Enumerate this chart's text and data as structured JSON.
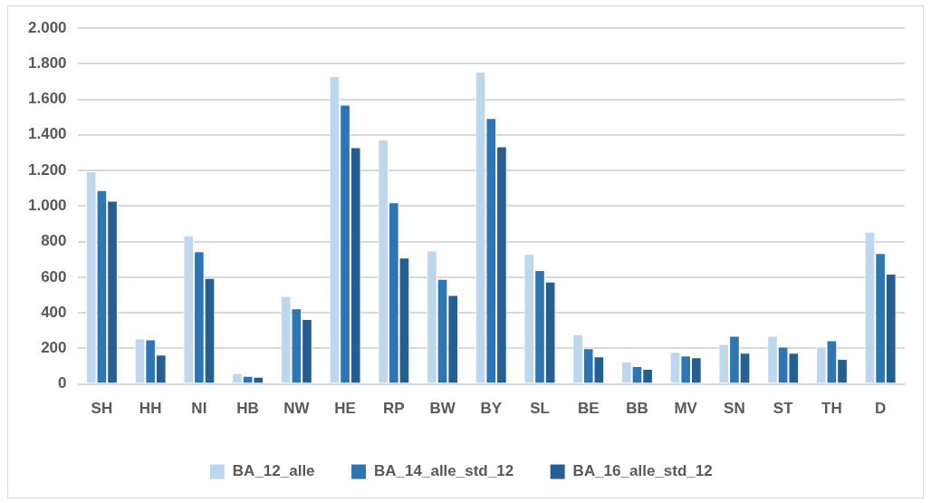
{
  "chart_data": {
    "type": "bar",
    "categories": [
      "SH",
      "HH",
      "NI",
      "HB",
      "NW",
      "HE",
      "RP",
      "BW",
      "BY",
      "SL",
      "BE",
      "BB",
      "MV",
      "SN",
      "ST",
      "TH",
      "D"
    ],
    "series": [
      {
        "name": "BA_12_alle",
        "color": "#bdd7ee",
        "values": [
          1195,
          255,
          835,
          60,
          495,
          1730,
          1375,
          750,
          1755,
          730,
          280,
          125,
          180,
          225,
          270,
          210,
          855
        ]
      },
      {
        "name": "BA_14_alle_std_12",
        "color": "#2e75b6",
        "values": [
          1090,
          250,
          745,
          45,
          425,
          1570,
          1020,
          590,
          1495,
          640,
          200,
          100,
          160,
          270,
          210,
          245,
          735
        ]
      },
      {
        "name": "BA_16_alle_std_12",
        "color": "#255e91",
        "values": [
          1030,
          165,
          595,
          40,
          365,
          1330,
          710,
          500,
          1335,
          575,
          155,
          85,
          150,
          175,
          175,
          140,
          620
        ]
      }
    ],
    "ylim": [
      0,
      2000
    ],
    "yticks": [
      {
        "value": 0,
        "label": "0"
      },
      {
        "value": 200,
        "label": "200"
      },
      {
        "value": 400,
        "label": "400"
      },
      {
        "value": 600,
        "label": "600"
      },
      {
        "value": 800,
        "label": "800"
      },
      {
        "value": 1000,
        "label": "1.000"
      },
      {
        "value": 1200,
        "label": "1.200"
      },
      {
        "value": 1400,
        "label": "1.400"
      },
      {
        "value": 1600,
        "label": "1.600"
      },
      {
        "value": 1800,
        "label": "1.800"
      },
      {
        "value": 2000,
        "label": "2.000"
      }
    ],
    "grid": "y",
    "legend": "bottom"
  }
}
